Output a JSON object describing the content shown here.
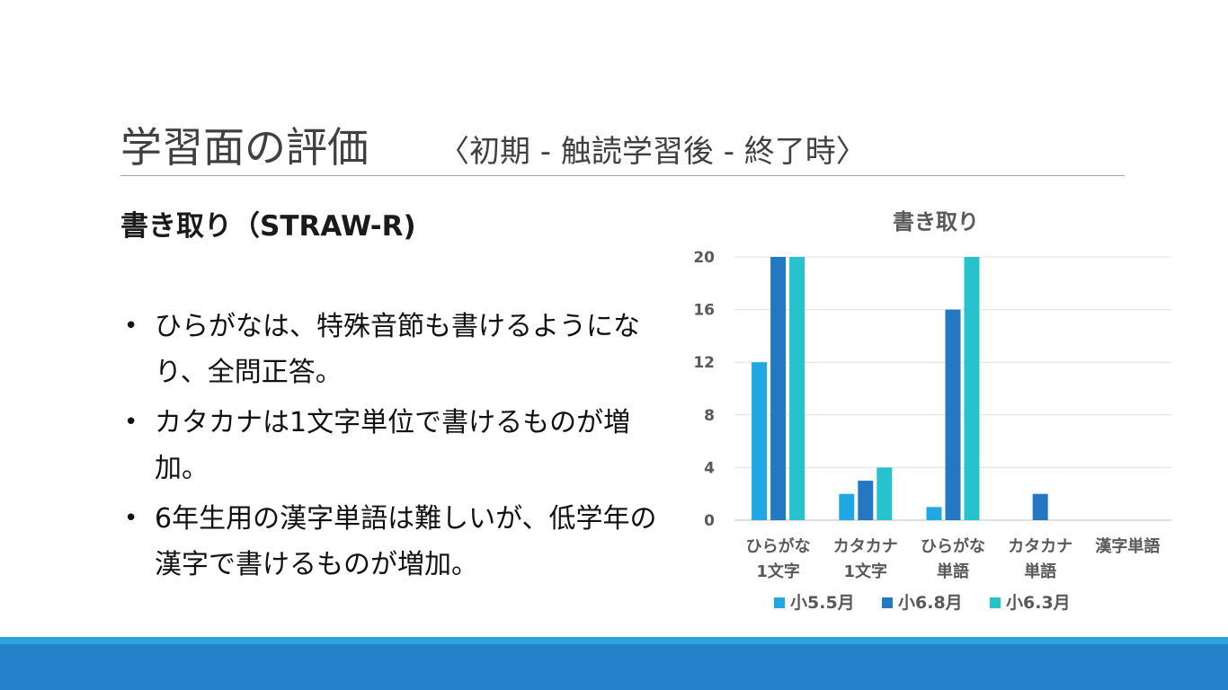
{
  "slide": {
    "title": "学習面の評価",
    "subtitle": "〈初期 - 触読学習後 - 終了時〉",
    "heading": "書き取り（STRAW-R)",
    "bullet_glyph": "•",
    "bullets": [
      "ひらがなは、特殊音節も書けるようになり、全問正答。",
      "カタカナは1文字単位で書けるものが増加。",
      "6年生用の漢字単語は難しいが、低学年の漢字で書けるものが増加。"
    ]
  },
  "colors": {
    "band_light": "#2aa4dc",
    "band_dark": "#2382c9",
    "gridline": "#e0e0e0"
  },
  "chart_data": {
    "type": "bar",
    "title": "書き取り",
    "categories": [
      [
        "ひらがな",
        "1文字"
      ],
      [
        "カタカナ",
        "1文字"
      ],
      [
        "ひらがな",
        "単語"
      ],
      [
        "カタカナ",
        "単語"
      ],
      [
        "漢字単語"
      ]
    ],
    "series": [
      {
        "name": "小5.5月",
        "color": "#1fa8e3",
        "values": [
          12,
          2,
          1,
          0,
          0
        ]
      },
      {
        "name": "小6.8月",
        "color": "#2478c2",
        "values": [
          20,
          3,
          16,
          2,
          0
        ]
      },
      {
        "name": "小6.3月",
        "color": "#26c3cf",
        "values": [
          20,
          4,
          20,
          0,
          0
        ]
      }
    ],
    "ylim": [
      0,
      20
    ],
    "yticks": [
      0,
      4,
      8,
      12,
      16,
      20
    ],
    "grid": true,
    "legend": "bottom"
  }
}
